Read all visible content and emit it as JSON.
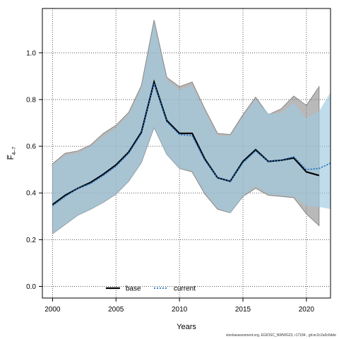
{
  "chart_data": {
    "type": "line",
    "xlabel": "Years",
    "ylabel": "F̅",
    "ylabel_sub": "4–7",
    "xlim": [
      1999.2,
      2021.9
    ],
    "ylim": [
      -0.05,
      1.19
    ],
    "x_ticks": [
      2000,
      2005,
      2010,
      2015,
      2020
    ],
    "y_ticks": [
      0.0,
      0.2,
      0.4,
      0.6,
      0.8,
      1.0
    ],
    "y_tick_labels": [
      "0.0",
      "0.2",
      "0.4",
      "0.6",
      "0.8",
      "1.0"
    ],
    "grid": true,
    "legend_position": "bottom",
    "series": [
      {
        "name": "base",
        "style": "solid",
        "color": "#000000",
        "band_color": "#808080",
        "x": [
          2000,
          2001,
          2002,
          2003,
          2004,
          2005,
          2006,
          2007,
          2008,
          2009,
          2010,
          2011,
          2012,
          2013,
          2014,
          2015,
          2016,
          2017,
          2018,
          2019,
          2020,
          2021
        ],
        "values": [
          0.35,
          0.39,
          0.42,
          0.445,
          0.48,
          0.52,
          0.575,
          0.66,
          0.875,
          0.71,
          0.655,
          0.655,
          0.545,
          0.465,
          0.45,
          0.535,
          0.585,
          0.535,
          0.54,
          0.55,
          0.49,
          0.475
        ],
        "upper": [
          0.525,
          0.57,
          0.58,
          0.605,
          0.655,
          0.69,
          0.745,
          0.86,
          1.14,
          0.895,
          0.855,
          0.875,
          0.76,
          0.655,
          0.65,
          0.735,
          0.81,
          0.735,
          0.76,
          0.815,
          0.775,
          0.855
        ],
        "lower": [
          0.225,
          0.265,
          0.305,
          0.33,
          0.36,
          0.395,
          0.45,
          0.53,
          0.68,
          0.565,
          0.505,
          0.49,
          0.395,
          0.33,
          0.315,
          0.385,
          0.42,
          0.39,
          0.385,
          0.38,
          0.31,
          0.26
        ]
      },
      {
        "name": "current",
        "style": "dotted",
        "color": "#1f6fbf",
        "band_color": "#9ecae1",
        "x": [
          2000,
          2001,
          2002,
          2003,
          2004,
          2005,
          2006,
          2007,
          2008,
          2009,
          2010,
          2011,
          2012,
          2013,
          2014,
          2015,
          2016,
          2017,
          2018,
          2019,
          2020,
          2021,
          2022
        ],
        "values": [
          0.345,
          0.385,
          0.42,
          0.44,
          0.475,
          0.515,
          0.57,
          0.655,
          0.87,
          0.705,
          0.65,
          0.645,
          0.54,
          0.465,
          0.45,
          0.53,
          0.58,
          0.535,
          0.54,
          0.555,
          0.5,
          0.505,
          0.53
        ],
        "upper": [
          0.52,
          0.56,
          0.57,
          0.6,
          0.64,
          0.68,
          0.735,
          0.85,
          1.13,
          0.885,
          0.84,
          0.86,
          0.75,
          0.645,
          0.645,
          0.725,
          0.8,
          0.74,
          0.74,
          0.785,
          0.72,
          0.75,
          0.84
        ],
        "lower": [
          0.225,
          0.265,
          0.305,
          0.33,
          0.36,
          0.395,
          0.45,
          0.53,
          0.68,
          0.565,
          0.505,
          0.495,
          0.4,
          0.335,
          0.315,
          0.385,
          0.43,
          0.395,
          0.39,
          0.385,
          0.345,
          0.34,
          0.33
        ]
      }
    ],
    "footnote": "stockassessment.org, EGIOSC_NWWG23, r17184 , git:ec2c2a0c6dde"
  }
}
